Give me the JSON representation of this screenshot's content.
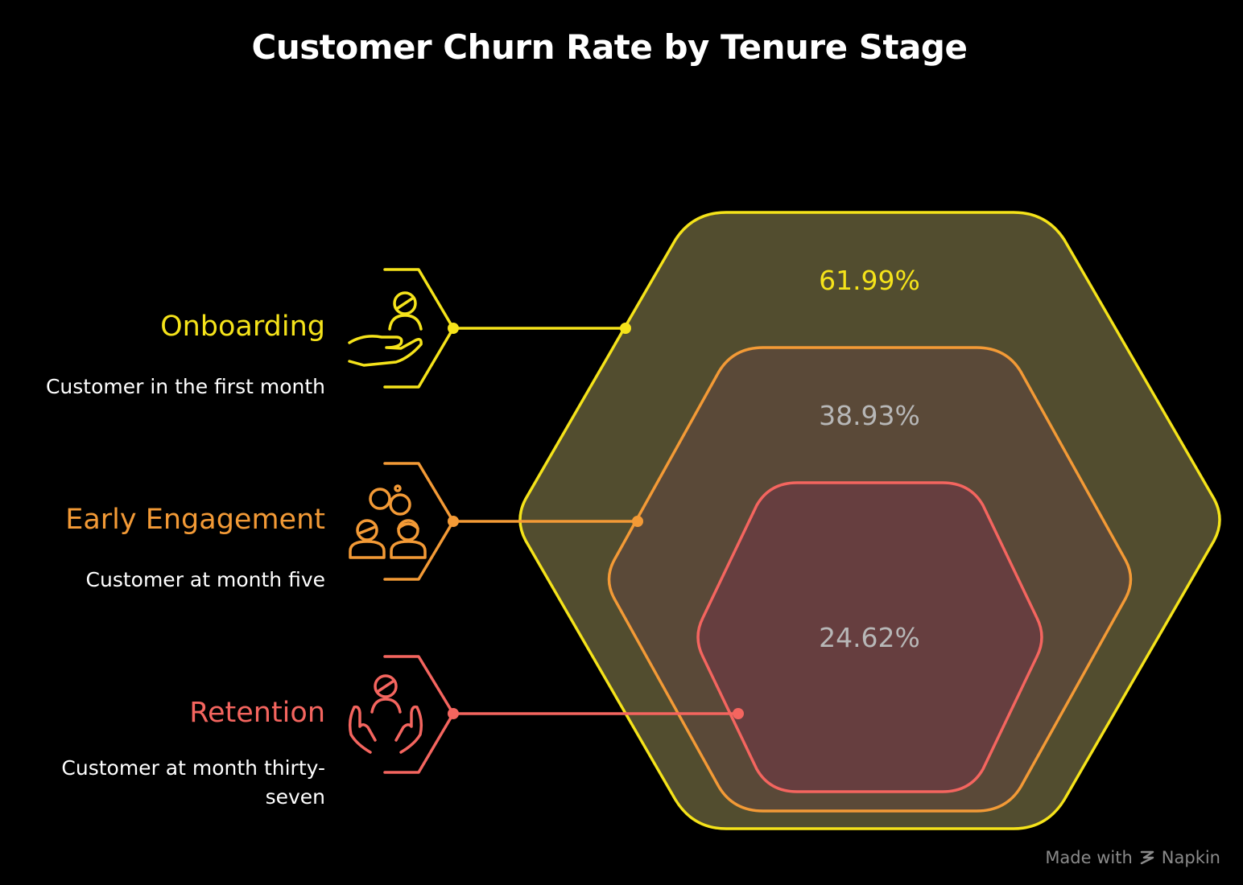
{
  "title": "Customer Churn Rate by Tenure Stage",
  "colors": {
    "onboarding": "#f5e31a",
    "engagement": "#f39a36",
    "retention": "#f4655f",
    "percent_inner": "#b7b7b7"
  },
  "stages": [
    {
      "label": "Onboarding",
      "description": "Customer in the first month",
      "icon": "hand-offering-person-icon",
      "churn_rate": "61.99%"
    },
    {
      "label": "Early Engagement",
      "description": "Customer at month five",
      "icon": "two-people-connecting-icon",
      "churn_rate": "38.93%"
    },
    {
      "label": "Retention",
      "description": "Customer at month thirty-seven",
      "icon": "hands-holding-person-icon",
      "churn_rate": "24.62%"
    }
  ],
  "footer": {
    "made_with": "Made with",
    "brand": "Napkin"
  }
}
